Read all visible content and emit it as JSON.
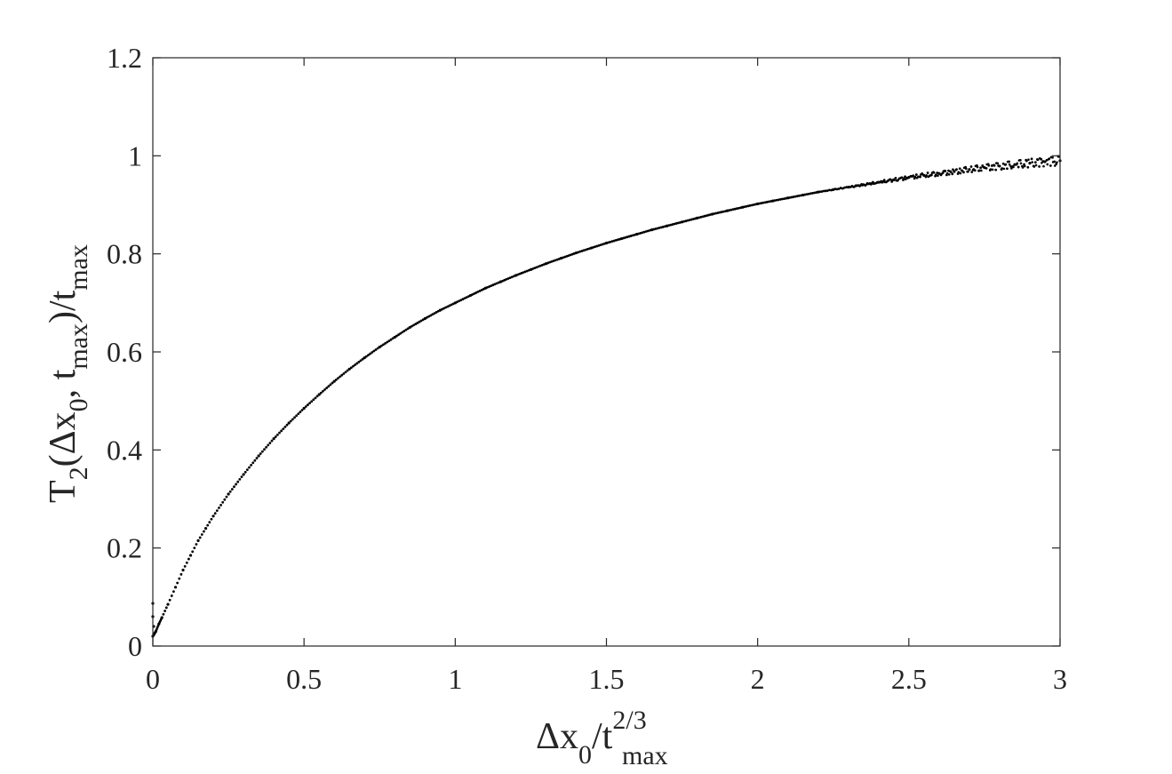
{
  "chart_data": {
    "type": "scatter",
    "title": "",
    "xlabel": {
      "parts": [
        {
          "text": "Δx",
          "shift": "base"
        },
        {
          "text": "0",
          "shift": "sub"
        },
        {
          "text": "/t",
          "shift": "base"
        },
        {
          "text": "2/3",
          "shift": "sup"
        },
        {
          "text": "max",
          "shift": "sub"
        }
      ]
    },
    "ylabel": {
      "parts": [
        {
          "text": "T",
          "shift": "base"
        },
        {
          "text": "2",
          "shift": "sub"
        },
        {
          "text": "(Δx",
          "shift": "base"
        },
        {
          "text": "0",
          "shift": "sub"
        },
        {
          "text": ", t",
          "shift": "base"
        },
        {
          "text": "max",
          "shift": "sub"
        },
        {
          "text": ")/t",
          "shift": "base"
        },
        {
          "text": "max",
          "shift": "sub"
        }
      ]
    },
    "xlim": [
      0,
      3
    ],
    "ylim": [
      0,
      1.2
    ],
    "x_ticks": [
      0,
      0.5,
      1,
      1.5,
      2,
      2.5,
      3
    ],
    "x_tick_labels": [
      "0",
      "0.5",
      "1",
      "1.5",
      "2",
      "2.5",
      "3"
    ],
    "y_ticks": [
      0,
      0.2,
      0.4,
      0.6,
      0.8,
      1,
      1.2
    ],
    "y_tick_labels": [
      "0",
      "0.2",
      "0.4",
      "0.6",
      "0.8",
      "1",
      "1.2"
    ],
    "grid": false,
    "box": true,
    "marker_color": "#000000",
    "series": [
      {
        "x": [
          0.0,
          0.005,
          0.01,
          0.02,
          0.03,
          0.05,
          0.075,
          0.1,
          0.125,
          0.15,
          0.175,
          0.2,
          0.25,
          0.3,
          0.35,
          0.4,
          0.45,
          0.5,
          0.55,
          0.6,
          0.65,
          0.7,
          0.75,
          0.8,
          0.85,
          0.9,
          0.95,
          1.0,
          1.05,
          1.1,
          1.15,
          1.2,
          1.25,
          1.3,
          1.35,
          1.4,
          1.45,
          1.5,
          1.55,
          1.6,
          1.65,
          1.7,
          1.75,
          1.8,
          1.85,
          1.9,
          1.95,
          2.0,
          2.05,
          2.1,
          2.15,
          2.2,
          2.25,
          2.3,
          2.35,
          2.4,
          2.45,
          2.5,
          2.55,
          2.6,
          2.65,
          2.7,
          2.75,
          2.8,
          2.85,
          2.9,
          2.95,
          3.0
        ],
        "y": [
          0.02,
          0.025,
          0.03,
          0.045,
          0.058,
          0.085,
          0.12,
          0.155,
          0.185,
          0.215,
          0.24,
          0.265,
          0.31,
          0.35,
          0.388,
          0.423,
          0.455,
          0.485,
          0.513,
          0.54,
          0.565,
          0.588,
          0.61,
          0.63,
          0.65,
          0.668,
          0.685,
          0.7,
          0.715,
          0.73,
          0.743,
          0.756,
          0.768,
          0.78,
          0.791,
          0.802,
          0.812,
          0.822,
          0.831,
          0.84,
          0.849,
          0.857,
          0.865,
          0.873,
          0.881,
          0.888,
          0.895,
          0.902,
          0.908,
          0.914,
          0.92,
          0.926,
          0.931,
          0.936,
          0.941,
          0.946,
          0.951,
          0.956,
          0.96,
          0.964,
          0.968,
          0.972,
          0.976,
          0.979,
          0.982,
          0.985,
          0.988,
          0.99
        ]
      }
    ]
  }
}
